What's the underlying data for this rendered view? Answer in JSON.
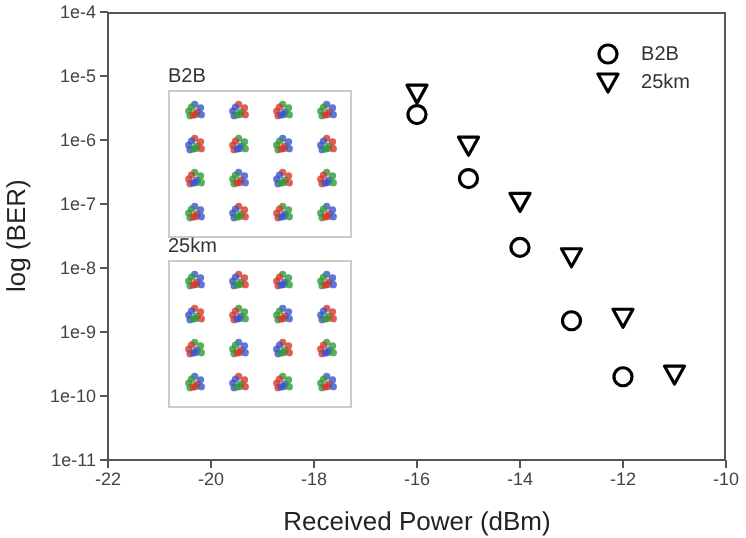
{
  "chart_data": {
    "type": "scatter",
    "xlabel": "Received Power (dBm)",
    "ylabel": "log (BER)",
    "xlim": [
      -22,
      -10
    ],
    "xticks": [
      -22,
      -20,
      -18,
      -16,
      -14,
      -12,
      -10
    ],
    "ylim": [
      1e-11,
      0.0001
    ],
    "yticks": [
      {
        "value": 1e-11,
        "label": "1e-11"
      },
      {
        "value": 1e-10,
        "label": "1e-10"
      },
      {
        "value": 1e-09,
        "label": "1e-9"
      },
      {
        "value": 1e-08,
        "label": "1e-8"
      },
      {
        "value": 1e-07,
        "label": "1e-7"
      },
      {
        "value": 1e-06,
        "label": "1e-6"
      },
      {
        "value": 1e-05,
        "label": "1e-5"
      },
      {
        "value": 0.0001,
        "label": "1e-4"
      }
    ],
    "log": "y",
    "legend": "top right",
    "series": [
      {
        "name": "B2B",
        "color": "#000000",
        "marker": "circle",
        "x": [
          -16,
          -15,
          -14,
          -13,
          -12
        ],
        "values": [
          2.5e-06,
          2.5e-07,
          2.1e-08,
          1.5e-09,
          2e-10
        ]
      },
      {
        "name": "25km",
        "color": "#000000",
        "marker": "triangle",
        "x": [
          -16,
          -15,
          -14,
          -13,
          -12,
          -11
        ],
        "values": [
          5.4e-06,
          8.3e-07,
          1.1e-07,
          1.5e-08,
          1.7e-09,
          2.2e-10
        ]
      }
    ],
    "annotations": [
      "B2B",
      "25km"
    ]
  }
}
